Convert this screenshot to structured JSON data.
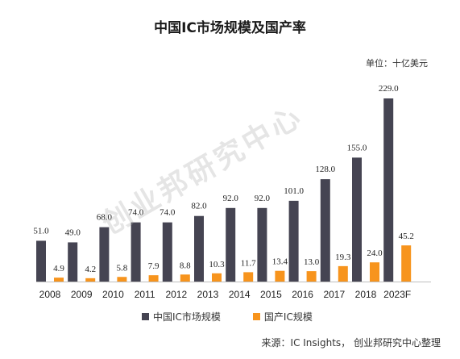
{
  "chart_data": {
    "type": "bar",
    "title": "中国IC市场规模及国产率",
    "unit_note": "单位：十亿美元",
    "categories": [
      "2008",
      "2009",
      "2010",
      "2011",
      "2012",
      "2013",
      "2014",
      "2015",
      "2016",
      "2017",
      "2018",
      "2023F"
    ],
    "series": [
      {
        "name": "中国IC市场规模",
        "color": "#454452",
        "values": [
          51.0,
          49.0,
          68.0,
          74.0,
          74.0,
          82.0,
          92.0,
          92.0,
          101.0,
          128.0,
          155.0,
          229.0
        ]
      },
      {
        "name": "国产IC规模",
        "color": "#f7941d",
        "values": [
          4.9,
          4.2,
          5.8,
          7.9,
          8.8,
          10.3,
          11.7,
          13.4,
          13.0,
          19.3,
          24.0,
          45.2
        ]
      }
    ],
    "ylim": [
      0,
      229
    ]
  },
  "source": "来源：IC Insights， 创业邦研究中心整理",
  "watermark": "创业邦研究中心"
}
